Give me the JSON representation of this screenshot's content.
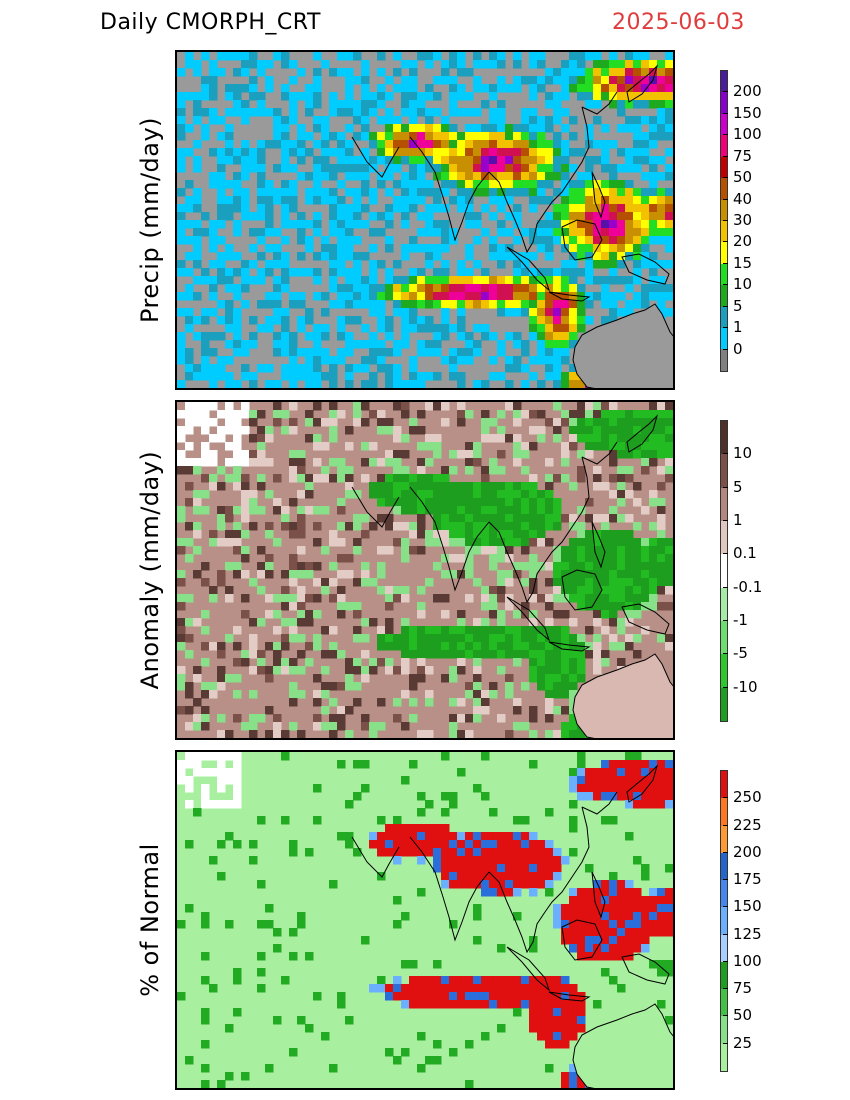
{
  "header": {
    "title": "Daily  CMORPH_CRT",
    "date": "2025-06-03"
  },
  "panels": [
    {
      "id": "precip",
      "ylabel": "Precip  (mm/day)",
      "background": "#9a9a9a",
      "land": "#9a9a9a",
      "palette": [
        "#00ccff",
        "#1a9fbf",
        "#1eaa1e",
        "#22dd22",
        "#ffff00",
        "#f2c200",
        "#c89000",
        "#b45000",
        "#d01050",
        "#ee0099",
        "#9900cc",
        "#5511aa"
      ],
      "colorbar": {
        "colors": [
          "#808080",
          "#00ccff",
          "#1a9fbf",
          "#1eaa1e",
          "#22dd22",
          "#ffff00",
          "#f2c200",
          "#c89000",
          "#b45000",
          "#c00000",
          "#ee0077",
          "#cc00cc",
          "#8800cc",
          "#4a1a99"
        ],
        "labels": [
          "200",
          "150",
          "100",
          "75",
          "50",
          "40",
          "30",
          "20",
          "15",
          "10",
          "5",
          "1",
          "0"
        ]
      }
    },
    {
      "id": "anomaly",
      "ylabel": "Anomaly  (mm/day)",
      "background": "#b89088",
      "land": "#d8b8b0",
      "palette": [
        "#1e9e1e",
        "#22bb22",
        "#88e088",
        "#5a3a34",
        "#7a5048",
        "#ffffff",
        "#e4ccc6",
        "#a07870"
      ],
      "colorbar": {
        "colors": [
          "#1e9e1e",
          "#2ec82e",
          "#6edc6e",
          "#a6eca6",
          "#ffffff",
          "#e2c6c0",
          "#b08880",
          "#7a5048",
          "#4e302b"
        ],
        "labels": [
          "10",
          "5",
          "1",
          "0.1",
          "-0.1",
          "-1",
          "-5",
          "-10"
        ]
      }
    },
    {
      "id": "percent",
      "ylabel": "% of Normal",
      "background": "#a8f0a0",
      "land": "#a8f0a0",
      "palette": [
        "#e01010",
        "#e01010",
        "#e01010",
        "#2a6edc",
        "#6ab0ff",
        "#22aa22",
        "#ffffff",
        "#8ae68a"
      ],
      "colorbar": {
        "colors": [
          "#a8f0a0",
          "#88e088",
          "#44c044",
          "#1e9e1e",
          "#a8d0ff",
          "#6ab0ff",
          "#4488ee",
          "#2266cc",
          "#ff9933",
          "#ff7722",
          "#e01010"
        ],
        "labels": [
          "250",
          "225",
          "200",
          "175",
          "150",
          "125",
          "100",
          "75",
          "50",
          "25"
        ]
      }
    }
  ]
}
